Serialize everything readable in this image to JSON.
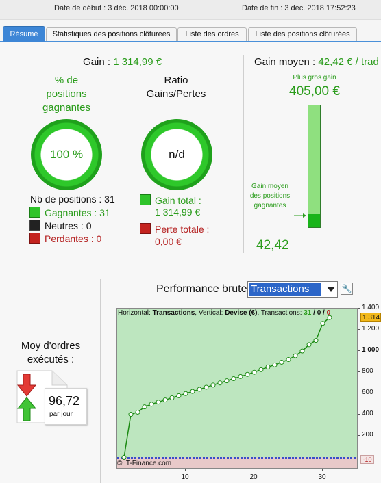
{
  "header": {
    "start_date": "Date de début : 3 déc. 2018 00:00:00",
    "end_date": "Date de fin : 3 déc. 2018 17:52:23"
  },
  "tabs": [
    {
      "label": "Résumé",
      "active": true
    },
    {
      "label": "Statistiques des positions clôturées"
    },
    {
      "label": "Liste des ordres"
    },
    {
      "label": "Liste des positions clôturées"
    }
  ],
  "summary": {
    "gain_label": "Gain : ",
    "gain_value": "1 314,99 €",
    "pct_title": "% de positions gagnantes",
    "pct_value": "100 %",
    "ratio_title": "Ratio Gains/Pertes",
    "ratio_value": "n/d",
    "nb_positions": "Nb de positions : 31",
    "gagnantes": "Gagnantes : 31",
    "neutres": "Neutres : 0",
    "perdantes": "Perdantes : 0",
    "gain_total_label": "Gain total :",
    "gain_total_value": "1 314,99 €",
    "perte_totale_label": "Perte totale :",
    "perte_totale_value": "0,00 €"
  },
  "avg_gain": {
    "label": "Gain moyen : ",
    "value": "42,42 € / trad",
    "max_label": "Plus gros gain",
    "max_value": "405,00 €",
    "bar_label": "Gain moyen des positions gagnantes",
    "bar_value": "42,42",
    "bar_fraction": 0.1047
  },
  "orders": {
    "title": "Moy d'ordres exécutés :",
    "value": "96,72",
    "unit": "par jour"
  },
  "performance": {
    "label": "Performance brute",
    "selected": "Transactions",
    "info_prefix": "Horizontal: ",
    "info_h": "Transactions",
    "info_mid": ", Vertical: ",
    "info_v": "Devise (€)",
    "info_mid2": ", Transactions: ",
    "info_win": "31",
    "info_sep1": " / ",
    "info_neutral": "0",
    "info_sep2": " / ",
    "info_loss": "0",
    "copyright": "© IT-Finance.com",
    "current_value": "1 314",
    "neg_label": "-10"
  },
  "chart_data": {
    "type": "line",
    "x": [
      1,
      2,
      3,
      4,
      5,
      6,
      7,
      8,
      9,
      10,
      11,
      12,
      13,
      14,
      15,
      16,
      17,
      18,
      19,
      20,
      21,
      22,
      23,
      24,
      25,
      26,
      27,
      28,
      29,
      30,
      31
    ],
    "values": [
      0,
      405,
      425,
      475,
      500,
      520,
      540,
      560,
      580,
      600,
      620,
      640,
      660,
      680,
      700,
      720,
      740,
      760,
      780,
      800,
      825,
      850,
      870,
      895,
      920,
      955,
      1000,
      1060,
      1100,
      1260,
      1315
    ],
    "x_ticks": [
      10,
      20,
      30
    ],
    "y_ticks": [
      200,
      400,
      600,
      800,
      1000,
      1200,
      1400
    ],
    "y_tick_labels": [
      "200",
      "400",
      "600",
      "800",
      "1 000",
      "1 200",
      "1 400"
    ],
    "xlim": [
      0,
      35
    ],
    "ylim": [
      -100,
      1400
    ],
    "colors": {
      "line": "#1b8a12",
      "positive_area": "#bde6bf",
      "negative_area": "#e8c9c9",
      "marker": "#ffffff"
    }
  }
}
